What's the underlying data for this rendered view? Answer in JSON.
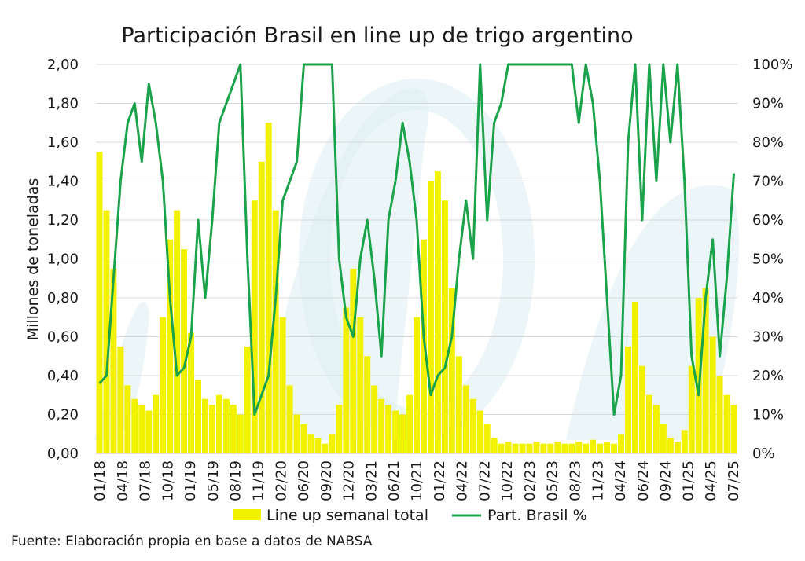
{
  "chart_data": {
    "type": "bar",
    "title": "Participación Brasil en line up de trigo argentino",
    "ylabel": "Millones de toneladas",
    "ylim": [
      0,
      2
    ],
    "y2lim": [
      0,
      100
    ],
    "yticks": [
      "0,00",
      "0,20",
      "0,40",
      "0,60",
      "0,80",
      "1,00",
      "1,20",
      "1,40",
      "1,60",
      "1,80",
      "2,00"
    ],
    "y2ticks": [
      "0%",
      "10%",
      "20%",
      "30%",
      "40%",
      "50%",
      "60%",
      "70%",
      "80%",
      "90%",
      "100%"
    ],
    "xticks": [
      "01/18",
      "04/18",
      "07/18",
      "10/18",
      "01/19",
      "05/19",
      "08/19",
      "11/19",
      "02/20",
      "06/20",
      "09/20",
      "12/20",
      "03/21",
      "06/21",
      "10/21",
      "01/22",
      "04/22",
      "07/22",
      "10/22",
      "02/23",
      "05/23",
      "08/23",
      "11/23",
      "04/24",
      "06/24",
      "09/24",
      "01/25",
      "04/25",
      "07/25"
    ],
    "legend_position": "bottom",
    "grid": true,
    "colors": {
      "bars": "#f2f200",
      "line": "#1aa34a",
      "watermark": "#dff0f4"
    },
    "series": [
      {
        "name": "Line up semanal total",
        "kind": "bar",
        "x": [
          "01/18",
          "02/18",
          "03/18",
          "04/18",
          "05/18",
          "06/18",
          "07/18",
          "08/18",
          "09/18",
          "10/18",
          "11/18",
          "12/18",
          "01/19",
          "02/19",
          "03/19",
          "04/19",
          "05/19",
          "06/19",
          "07/19",
          "08/19",
          "09/19",
          "10/19",
          "11/19",
          "12/19",
          "01/20",
          "02/20",
          "03/20",
          "04/20",
          "05/20",
          "06/20",
          "07/20",
          "08/20",
          "09/20",
          "10/20",
          "11/20",
          "12/20",
          "01/21",
          "02/21",
          "03/21",
          "04/21",
          "05/21",
          "06/21",
          "07/21",
          "08/21",
          "09/21",
          "10/21",
          "11/21",
          "12/21",
          "01/22",
          "02/22",
          "03/22",
          "04/22",
          "05/22",
          "06/22",
          "07/22",
          "08/22",
          "09/22",
          "10/22",
          "11/22",
          "12/22",
          "01/23",
          "02/23",
          "03/23",
          "04/23",
          "05/23",
          "06/23",
          "07/23",
          "08/23",
          "09/23",
          "10/23",
          "11/23",
          "12/23",
          "01/24",
          "02/24",
          "03/24",
          "04/24",
          "05/24",
          "06/24",
          "07/24",
          "08/24",
          "09/24",
          "10/24",
          "11/24",
          "12/24",
          "01/25",
          "02/25",
          "03/25",
          "04/25",
          "05/25",
          "06/25",
          "07/25"
        ],
        "values": [
          1.55,
          1.25,
          0.95,
          0.55,
          0.35,
          0.28,
          0.25,
          0.22,
          0.3,
          0.7,
          1.1,
          1.25,
          1.05,
          0.62,
          0.38,
          0.28,
          0.25,
          0.3,
          0.28,
          0.25,
          0.2,
          0.55,
          1.3,
          1.5,
          1.7,
          1.25,
          0.7,
          0.35,
          0.2,
          0.15,
          0.1,
          0.08,
          0.05,
          0.1,
          0.25,
          0.75,
          0.95,
          0.7,
          0.5,
          0.35,
          0.28,
          0.25,
          0.22,
          0.2,
          0.3,
          0.7,
          1.1,
          1.4,
          1.45,
          1.3,
          0.85,
          0.5,
          0.35,
          0.28,
          0.22,
          0.15,
          0.08,
          0.05,
          0.06,
          0.05,
          0.05,
          0.05,
          0.06,
          0.05,
          0.05,
          0.06,
          0.05,
          0.05,
          0.06,
          0.05,
          0.07,
          0.05,
          0.06,
          0.05,
          0.1,
          0.55,
          0.78,
          0.45,
          0.3,
          0.25,
          0.15,
          0.08,
          0.06,
          0.12,
          0.45,
          0.8,
          0.85,
          0.6,
          0.4,
          0.3,
          0.25
        ]
      },
      {
        "name": "Part. Brasil %",
        "kind": "line",
        "x": [
          "01/18",
          "02/18",
          "03/18",
          "04/18",
          "05/18",
          "06/18",
          "07/18",
          "08/18",
          "09/18",
          "10/18",
          "11/18",
          "12/18",
          "01/19",
          "02/19",
          "03/19",
          "04/19",
          "05/19",
          "06/19",
          "07/19",
          "08/19",
          "09/19",
          "10/19",
          "11/19",
          "12/19",
          "01/20",
          "02/20",
          "03/20",
          "04/20",
          "05/20",
          "06/20",
          "07/20",
          "08/20",
          "09/20",
          "10/20",
          "11/20",
          "12/20",
          "01/21",
          "02/21",
          "03/21",
          "04/21",
          "05/21",
          "06/21",
          "07/21",
          "08/21",
          "09/21",
          "10/21",
          "11/21",
          "12/21",
          "01/22",
          "02/22",
          "03/22",
          "04/22",
          "05/22",
          "06/22",
          "07/22",
          "08/22",
          "09/22",
          "10/22",
          "11/22",
          "12/22",
          "01/23",
          "02/23",
          "03/23",
          "04/23",
          "05/23",
          "06/23",
          "07/23",
          "08/23",
          "09/23",
          "10/23",
          "11/23",
          "12/23",
          "01/24",
          "02/24",
          "03/24",
          "04/24",
          "05/24",
          "06/24",
          "07/24",
          "08/24",
          "09/24",
          "10/24",
          "11/24",
          "12/24",
          "01/25",
          "02/25",
          "03/25",
          "04/25",
          "05/25",
          "06/25",
          "07/25"
        ],
        "values": [
          18,
          20,
          45,
          70,
          85,
          90,
          75,
          95,
          85,
          70,
          40,
          20,
          22,
          30,
          60,
          40,
          60,
          85,
          90,
          95,
          100,
          50,
          10,
          15,
          20,
          40,
          65,
          70,
          75,
          100,
          100,
          100,
          100,
          100,
          50,
          35,
          30,
          50,
          60,
          45,
          25,
          60,
          70,
          85,
          75,
          60,
          30,
          15,
          20,
          22,
          30,
          50,
          65,
          50,
          100,
          60,
          85,
          90,
          100,
          100,
          100,
          100,
          100,
          100,
          100,
          100,
          100,
          100,
          85,
          100,
          90,
          70,
          40,
          10,
          20,
          80,
          100,
          60,
          100,
          70,
          100,
          80,
          100,
          70,
          25,
          15,
          40,
          55,
          25,
          45,
          72
        ]
      }
    ]
  },
  "legend": {
    "bars_label": "Line up semanal total",
    "line_label": "Part. Brasil %"
  },
  "source": "Fuente: Elaboración propia en base a datos de NABSA"
}
